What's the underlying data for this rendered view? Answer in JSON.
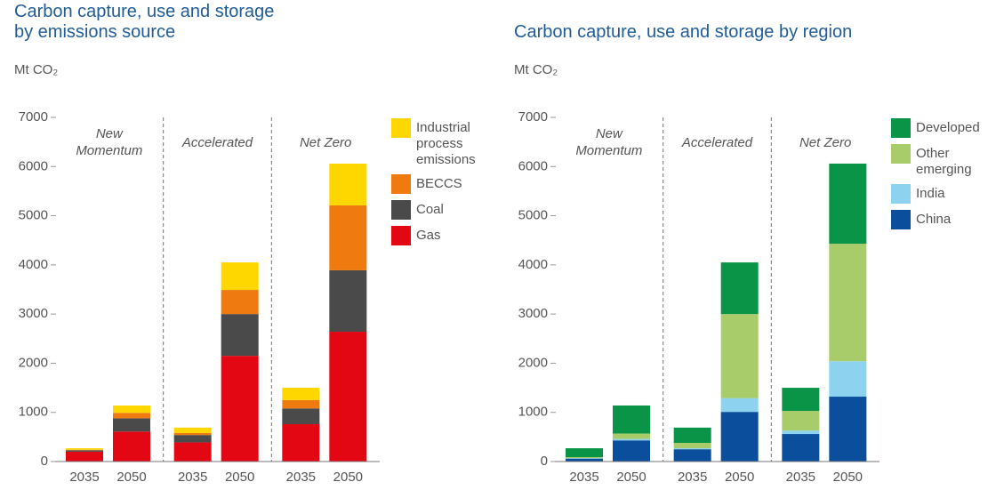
{
  "chart_data": [
    {
      "type": "bar",
      "stacked": true,
      "title": "Carbon capture, use and storage by emissions source",
      "y_label": "Mt CO₂",
      "groups": [
        "New Momentum",
        "Accelerated",
        "Net Zero"
      ],
      "categories": [
        "2035",
        "2050",
        "2035",
        "2050",
        "2035",
        "2050"
      ],
      "series": [
        {
          "name": "Gas",
          "color": "#e30613",
          "values": [
            200,
            610,
            390,
            2150,
            760,
            2640
          ]
        },
        {
          "name": "Coal",
          "color": "#4a4a4a",
          "values": [
            30,
            270,
            150,
            850,
            320,
            1250
          ]
        },
        {
          "name": "BECCS",
          "color": "#ef7b10",
          "values": [
            10,
            110,
            40,
            490,
            170,
            1320
          ]
        },
        {
          "name": "Industrial process emissions",
          "color": "#ffd700",
          "values": [
            30,
            150,
            110,
            560,
            250,
            850
          ]
        }
      ],
      "ylim": [
        0,
        7000
      ],
      "yticks": [
        0,
        1000,
        2000,
        3000,
        4000,
        5000,
        6000,
        7000
      ]
    },
    {
      "type": "bar",
      "stacked": true,
      "title": "Carbon capture, use and storage by region",
      "y_label": "Mt CO₂",
      "groups": [
        "New Momentum",
        "Accelerated",
        "Net Zero"
      ],
      "categories": [
        "2035",
        "2050",
        "2035",
        "2050",
        "2035",
        "2050"
      ],
      "series": [
        {
          "name": "China",
          "color": "#0b4f9c",
          "values": [
            60,
            430,
            250,
            1010,
            560,
            1320
          ]
        },
        {
          "name": "India",
          "color": "#8dd3f0",
          "values": [
            10,
            30,
            20,
            280,
            70,
            720
          ]
        },
        {
          "name": "Other emerging",
          "color": "#a8cc6a",
          "values": [
            20,
            110,
            110,
            1710,
            400,
            2390
          ]
        },
        {
          "name": "Developed",
          "color": "#0a9447",
          "values": [
            180,
            570,
            310,
            1050,
            470,
            1630
          ]
        }
      ],
      "ylim": [
        0,
        7000
      ],
      "yticks": [
        0,
        1000,
        2000,
        3000,
        4000,
        5000,
        6000,
        7000
      ]
    }
  ]
}
